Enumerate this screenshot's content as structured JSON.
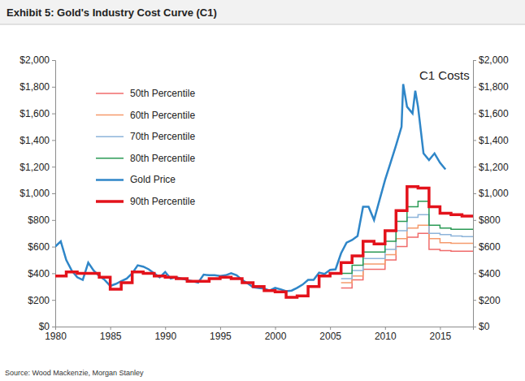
{
  "chart_data": {
    "type": "line",
    "title": "Exhibit 5: Gold's Industry Cost Curve (C1)",
    "annotations": [
      "C1 Costs"
    ],
    "source": "Source: Wood Mackenzie, Morgan Stanley",
    "x": [
      1980,
      1980.5,
      1981,
      1981.5,
      1982,
      1982.5,
      1983,
      1983.5,
      1984,
      1984.5,
      1985,
      1985.5,
      1986,
      1986.5,
      1987,
      1987.5,
      1988,
      1988.5,
      1989,
      1989.5,
      1990,
      1990.5,
      1991,
      1991.5,
      1992,
      1992.5,
      1993,
      1993.5,
      1994,
      1994.5,
      1995,
      1995.5,
      1996,
      1996.5,
      1997,
      1997.5,
      1998,
      1998.5,
      1999,
      1999.5,
      2000,
      2000.5,
      2001,
      2001.5,
      2002,
      2002.5,
      2003,
      2003.5,
      2004,
      2004.5,
      2005,
      2005.5,
      2006,
      2006.5,
      2007,
      2007.5,
      2008,
      2008.5,
      2009,
      2009.5,
      2010,
      2010.5,
      2011,
      2011.5,
      2011.65,
      2012,
      2012.5,
      2012.75,
      2013,
      2013.5,
      2014,
      2014.5,
      2015,
      2015.5,
      2016,
      2016.5,
      2017,
      2017.5,
      2018
    ],
    "series": [
      {
        "name": "50th Percentile",
        "color": "#f06b6b",
        "line_style": "step",
        "values": [
          null,
          null,
          null,
          null,
          null,
          null,
          null,
          null,
          null,
          null,
          null,
          null,
          null,
          null,
          null,
          null,
          null,
          null,
          null,
          null,
          null,
          null,
          null,
          null,
          null,
          null,
          null,
          null,
          null,
          null,
          null,
          null,
          null,
          null,
          null,
          null,
          null,
          null,
          null,
          null,
          null,
          null,
          null,
          null,
          null,
          null,
          null,
          null,
          null,
          null,
          null,
          null,
          290,
          290,
          350,
          350,
          430,
          430,
          430,
          430,
          500,
          500,
          600,
          600,
          600,
          670,
          670,
          670,
          700,
          700,
          580,
          580,
          570,
          570,
          565,
          565,
          565,
          565,
          565
        ]
      },
      {
        "name": "60th Percentile",
        "color": "#f59a6c",
        "line_style": "step",
        "values": [
          null,
          null,
          null,
          null,
          null,
          null,
          null,
          null,
          null,
          null,
          null,
          null,
          null,
          null,
          null,
          null,
          null,
          null,
          null,
          null,
          null,
          null,
          null,
          null,
          null,
          null,
          null,
          null,
          null,
          null,
          null,
          null,
          null,
          null,
          null,
          null,
          null,
          null,
          null,
          null,
          null,
          null,
          null,
          null,
          null,
          null,
          null,
          null,
          null,
          null,
          null,
          null,
          330,
          330,
          380,
          380,
          470,
          470,
          470,
          470,
          540,
          540,
          660,
          660,
          660,
          740,
          740,
          740,
          760,
          760,
          660,
          660,
          630,
          630,
          625,
          625,
          625,
          625,
          625
        ]
      },
      {
        "name": "70th Percentile",
        "color": "#8db4da",
        "line_style": "step",
        "values": [
          null,
          null,
          null,
          null,
          null,
          null,
          null,
          null,
          null,
          null,
          null,
          null,
          null,
          null,
          null,
          null,
          null,
          null,
          null,
          null,
          null,
          null,
          null,
          null,
          null,
          null,
          null,
          null,
          null,
          null,
          null,
          null,
          null,
          null,
          null,
          null,
          null,
          null,
          null,
          null,
          null,
          null,
          null,
          null,
          null,
          null,
          null,
          null,
          null,
          null,
          null,
          null,
          360,
          360,
          420,
          420,
          510,
          510,
          510,
          510,
          580,
          580,
          720,
          720,
          720,
          820,
          820,
          820,
          840,
          840,
          700,
          700,
          690,
          690,
          680,
          680,
          675,
          675,
          675
        ]
      },
      {
        "name": "80th Percentile",
        "color": "#2a9a55",
        "line_style": "step",
        "values": [
          null,
          null,
          null,
          null,
          null,
          null,
          null,
          null,
          null,
          null,
          null,
          null,
          null,
          null,
          null,
          null,
          null,
          null,
          null,
          null,
          null,
          null,
          null,
          null,
          null,
          null,
          null,
          null,
          null,
          null,
          null,
          null,
          null,
          null,
          null,
          null,
          null,
          null,
          null,
          null,
          null,
          null,
          null,
          null,
          null,
          null,
          null,
          null,
          null,
          null,
          null,
          null,
          400,
          400,
          460,
          460,
          560,
          560,
          560,
          560,
          640,
          640,
          790,
          790,
          790,
          900,
          900,
          900,
          940,
          940,
          760,
          760,
          740,
          740,
          730,
          730,
          730,
          730,
          730
        ]
      },
      {
        "name": "Gold Price",
        "color": "#2f86c8",
        "line_style": "solid",
        "values": [
          600,
          640,
          500,
          420,
          370,
          350,
          480,
          420,
          380,
          350,
          305,
          320,
          340,
          360,
          400,
          460,
          450,
          430,
          400,
          370,
          410,
          360,
          370,
          360,
          350,
          340,
          330,
          390,
          385,
          385,
          380,
          385,
          400,
          385,
          350,
          325,
          295,
          290,
          285,
          270,
          290,
          280,
          265,
          270,
          290,
          315,
          350,
          350,
          405,
          395,
          425,
          430,
          550,
          630,
          650,
          680,
          900,
          900,
          800,
          950,
          1100,
          1230,
          1360,
          1500,
          1820,
          1650,
          1600,
          1770,
          1650,
          1300,
          1250,
          1300,
          1230,
          1180,
          null,
          null,
          null,
          null,
          null
        ]
      },
      {
        "name": "90th Percentile",
        "color": "#e3121b",
        "line_style": "step",
        "values": [
          380,
          380,
          410,
          410,
          400,
          400,
          400,
          400,
          370,
          370,
          280,
          280,
          330,
          330,
          410,
          410,
          400,
          400,
          380,
          380,
          370,
          370,
          360,
          360,
          340,
          340,
          340,
          340,
          360,
          360,
          370,
          370,
          360,
          360,
          330,
          330,
          300,
          300,
          270,
          270,
          260,
          260,
          220,
          220,
          230,
          230,
          300,
          300,
          380,
          380,
          400,
          400,
          480,
          480,
          530,
          530,
          640,
          640,
          620,
          620,
          720,
          720,
          870,
          870,
          870,
          1050,
          1050,
          1050,
          1040,
          1040,
          900,
          900,
          850,
          850,
          840,
          840,
          830,
          830,
          830
        ]
      }
    ],
    "xlim": [
      1980,
      2018
    ],
    "xticks": [
      1980,
      1985,
      1990,
      1995,
      2000,
      2005,
      2010,
      2015
    ],
    "ylim": [
      0,
      2000
    ],
    "yticks": [
      {
        "value": 0,
        "label": "$0"
      },
      {
        "value": 200,
        "label": "$200"
      },
      {
        "value": 400,
        "label": "$400"
      },
      {
        "value": 600,
        "label": "$600"
      },
      {
        "value": 800,
        "label": "$800"
      },
      {
        "value": 1000,
        "label": "$1,000"
      },
      {
        "value": 1200,
        "label": "$1,200"
      },
      {
        "value": 1400,
        "label": "$1,400"
      },
      {
        "value": 1600,
        "label": "$1,600"
      },
      {
        "value": 1800,
        "label": "$1,800"
      },
      {
        "value": 2000,
        "label": "$2,000"
      }
    ],
    "y2lim": [
      0,
      2000
    ],
    "y2ticks": [
      {
        "value": 0,
        "label": "$0"
      },
      {
        "value": 200,
        "label": "$200"
      },
      {
        "value": 400,
        "label": "$400"
      },
      {
        "value": 600,
        "label": "$600"
      },
      {
        "value": 800,
        "label": "$800"
      },
      {
        "value": 1000,
        "label": "$1,000"
      },
      {
        "value": 1200,
        "label": "$1,200"
      },
      {
        "value": 1400,
        "label": "$1,400"
      },
      {
        "value": 1600,
        "label": "$1,600"
      },
      {
        "value": 1800,
        "label": "$1,800"
      },
      {
        "value": 2000,
        "label": "$2,000"
      }
    ],
    "grid": false,
    "legend": "upper left"
  }
}
